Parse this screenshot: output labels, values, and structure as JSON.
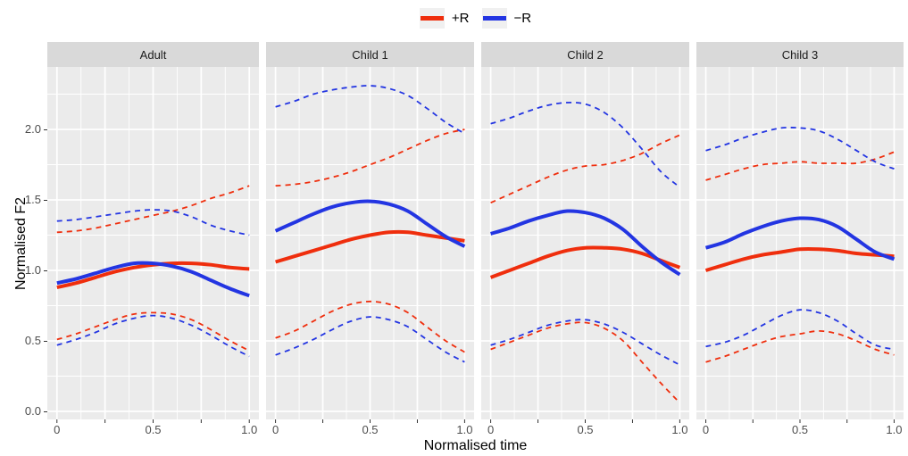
{
  "figure": {
    "xlabel": "Normalised time",
    "ylabel": "Normalised F2"
  },
  "legend": {
    "items": [
      {
        "label": "+R",
        "color": "#EF2E0D"
      },
      {
        "label": "−R",
        "color": "#2335E2"
      }
    ]
  },
  "colors": {
    "red": "#EF2E0D",
    "blue": "#2335E2",
    "panel_bg": "#EBEBEB",
    "strip_bg": "#D9D9D9",
    "grid": "#FFFFFF",
    "axis_text": "#4D4D4D",
    "tick_mark": "#333333",
    "legend_key_bg": "#F0F0F0",
    "text": "#000000"
  },
  "chart_data": {
    "type": "line",
    "title": "",
    "xlabel": "Normalised time",
    "ylabel": "Normalised F2",
    "xlim": [
      -0.05,
      1.05
    ],
    "ylim": [
      -0.057,
      2.443
    ],
    "grid": true,
    "legend_position": "top",
    "x": [
      0,
      0.1,
      0.2,
      0.3,
      0.4,
      0.5,
      0.6,
      0.7,
      0.8,
      0.9,
      1.0
    ],
    "x_ticks": {
      "major": [
        0,
        0.25,
        0.5,
        0.75,
        1.0
      ],
      "labels": [
        "0",
        "",
        "0.5",
        "",
        "1.0"
      ],
      "minor": [
        0.125,
        0.375,
        0.625,
        0.875
      ]
    },
    "y_ticks": {
      "major": [
        0.0,
        0.5,
        1.0,
        1.5,
        2.0
      ],
      "labels": [
        "0.0",
        "0.5",
        "1.0",
        "1.5",
        "2.0"
      ],
      "minor": [
        0.25,
        0.75,
        1.25,
        1.75,
        2.25
      ]
    },
    "groups": [
      {
        "name": "+R",
        "color": "#EF2E0D"
      },
      {
        "name": "−R",
        "color": "#2335E2"
      }
    ],
    "facets": [
      {
        "label": "Adult",
        "series": [
          {
            "group": "+R",
            "role": "ci_upper",
            "style": "dashed",
            "values": [
              1.27,
              1.28,
              1.3,
              1.33,
              1.36,
              1.39,
              1.42,
              1.46,
              1.51,
              1.55,
              1.6
            ]
          },
          {
            "group": "+R",
            "role": "ci_lower",
            "style": "dashed",
            "values": [
              0.51,
              0.55,
              0.6,
              0.65,
              0.69,
              0.7,
              0.69,
              0.65,
              0.58,
              0.5,
              0.43
            ]
          },
          {
            "group": "−R",
            "role": "ci_upper",
            "style": "dashed",
            "values": [
              1.35,
              1.36,
              1.38,
              1.4,
              1.42,
              1.43,
              1.42,
              1.38,
              1.32,
              1.28,
              1.25
            ]
          },
          {
            "group": "−R",
            "role": "ci_lower",
            "style": "dashed",
            "values": [
              0.47,
              0.51,
              0.56,
              0.62,
              0.66,
              0.68,
              0.66,
              0.61,
              0.54,
              0.46,
              0.39
            ]
          },
          {
            "group": "+R",
            "role": "mean",
            "style": "solid",
            "values": [
              0.88,
              0.91,
              0.95,
              0.99,
              1.02,
              1.04,
              1.05,
              1.05,
              1.04,
              1.02,
              1.01
            ]
          },
          {
            "group": "−R",
            "role": "mean",
            "style": "solid",
            "values": [
              0.91,
              0.94,
              0.98,
              1.02,
              1.05,
              1.05,
              1.03,
              0.99,
              0.93,
              0.87,
              0.82
            ]
          }
        ]
      },
      {
        "label": "Child 1",
        "series": [
          {
            "group": "+R",
            "role": "ci_upper",
            "style": "dashed",
            "values": [
              1.6,
              1.61,
              1.63,
              1.66,
              1.7,
              1.75,
              1.8,
              1.86,
              1.92,
              1.97,
              2.0
            ]
          },
          {
            "group": "+R",
            "role": "ci_lower",
            "style": "dashed",
            "values": [
              0.52,
              0.57,
              0.64,
              0.71,
              0.76,
              0.78,
              0.76,
              0.7,
              0.6,
              0.5,
              0.42
            ]
          },
          {
            "group": "−R",
            "role": "ci_upper",
            "style": "dashed",
            "values": [
              2.16,
              2.2,
              2.25,
              2.28,
              2.3,
              2.31,
              2.29,
              2.24,
              2.15,
              2.05,
              1.97
            ]
          },
          {
            "group": "−R",
            "role": "ci_lower",
            "style": "dashed",
            "values": [
              0.4,
              0.45,
              0.51,
              0.58,
              0.64,
              0.67,
              0.65,
              0.6,
              0.51,
              0.42,
              0.35
            ]
          },
          {
            "group": "+R",
            "role": "mean",
            "style": "solid",
            "values": [
              1.06,
              1.1,
              1.14,
              1.18,
              1.22,
              1.25,
              1.27,
              1.27,
              1.25,
              1.23,
              1.21
            ]
          },
          {
            "group": "−R",
            "role": "mean",
            "style": "solid",
            "values": [
              1.28,
              1.34,
              1.4,
              1.45,
              1.48,
              1.49,
              1.47,
              1.42,
              1.33,
              1.24,
              1.17
            ]
          }
        ]
      },
      {
        "label": "Child 2",
        "series": [
          {
            "group": "+R",
            "role": "ci_upper",
            "style": "dashed",
            "values": [
              1.48,
              1.54,
              1.6,
              1.66,
              1.71,
              1.74,
              1.75,
              1.78,
              1.83,
              1.9,
              1.96
            ]
          },
          {
            "group": "+R",
            "role": "ci_lower",
            "style": "dashed",
            "values": [
              0.44,
              0.49,
              0.54,
              0.59,
              0.62,
              0.63,
              0.59,
              0.5,
              0.35,
              0.2,
              0.06
            ]
          },
          {
            "group": "−R",
            "role": "ci_upper",
            "style": "dashed",
            "values": [
              2.04,
              2.08,
              2.13,
              2.17,
              2.19,
              2.18,
              2.12,
              2.01,
              1.86,
              1.7,
              1.59
            ]
          },
          {
            "group": "−R",
            "role": "ci_lower",
            "style": "dashed",
            "values": [
              0.47,
              0.51,
              0.56,
              0.61,
              0.64,
              0.65,
              0.62,
              0.56,
              0.48,
              0.4,
              0.33
            ]
          },
          {
            "group": "+R",
            "role": "mean",
            "style": "solid",
            "values": [
              0.95,
              1.0,
              1.05,
              1.1,
              1.14,
              1.16,
              1.16,
              1.15,
              1.12,
              1.07,
              1.02
            ]
          },
          {
            "group": "−R",
            "role": "mean",
            "style": "solid",
            "values": [
              1.26,
              1.3,
              1.35,
              1.39,
              1.42,
              1.41,
              1.37,
              1.29,
              1.17,
              1.06,
              0.97
            ]
          }
        ]
      },
      {
        "label": "Child 3",
        "series": [
          {
            "group": "+R",
            "role": "ci_upper",
            "style": "dashed",
            "values": [
              1.64,
              1.68,
              1.72,
              1.75,
              1.76,
              1.77,
              1.76,
              1.76,
              1.76,
              1.79,
              1.84
            ]
          },
          {
            "group": "+R",
            "role": "ci_lower",
            "style": "dashed",
            "values": [
              0.35,
              0.39,
              0.44,
              0.49,
              0.53,
              0.55,
              0.57,
              0.55,
              0.5,
              0.44,
              0.4
            ]
          },
          {
            "group": "−R",
            "role": "ci_upper",
            "style": "dashed",
            "values": [
              1.85,
              1.89,
              1.94,
              1.98,
              2.01,
              2.01,
              1.99,
              1.93,
              1.85,
              1.77,
              1.72
            ]
          },
          {
            "group": "−R",
            "role": "ci_lower",
            "style": "dashed",
            "values": [
              0.46,
              0.49,
              0.54,
              0.61,
              0.68,
              0.72,
              0.7,
              0.64,
              0.55,
              0.47,
              0.44
            ]
          },
          {
            "group": "+R",
            "role": "mean",
            "style": "solid",
            "values": [
              1.0,
              1.04,
              1.08,
              1.11,
              1.13,
              1.15,
              1.15,
              1.14,
              1.12,
              1.11,
              1.1
            ]
          },
          {
            "group": "−R",
            "role": "mean",
            "style": "solid",
            "values": [
              1.16,
              1.2,
              1.26,
              1.31,
              1.35,
              1.37,
              1.36,
              1.31,
              1.22,
              1.13,
              1.08
            ]
          }
        ]
      }
    ]
  }
}
